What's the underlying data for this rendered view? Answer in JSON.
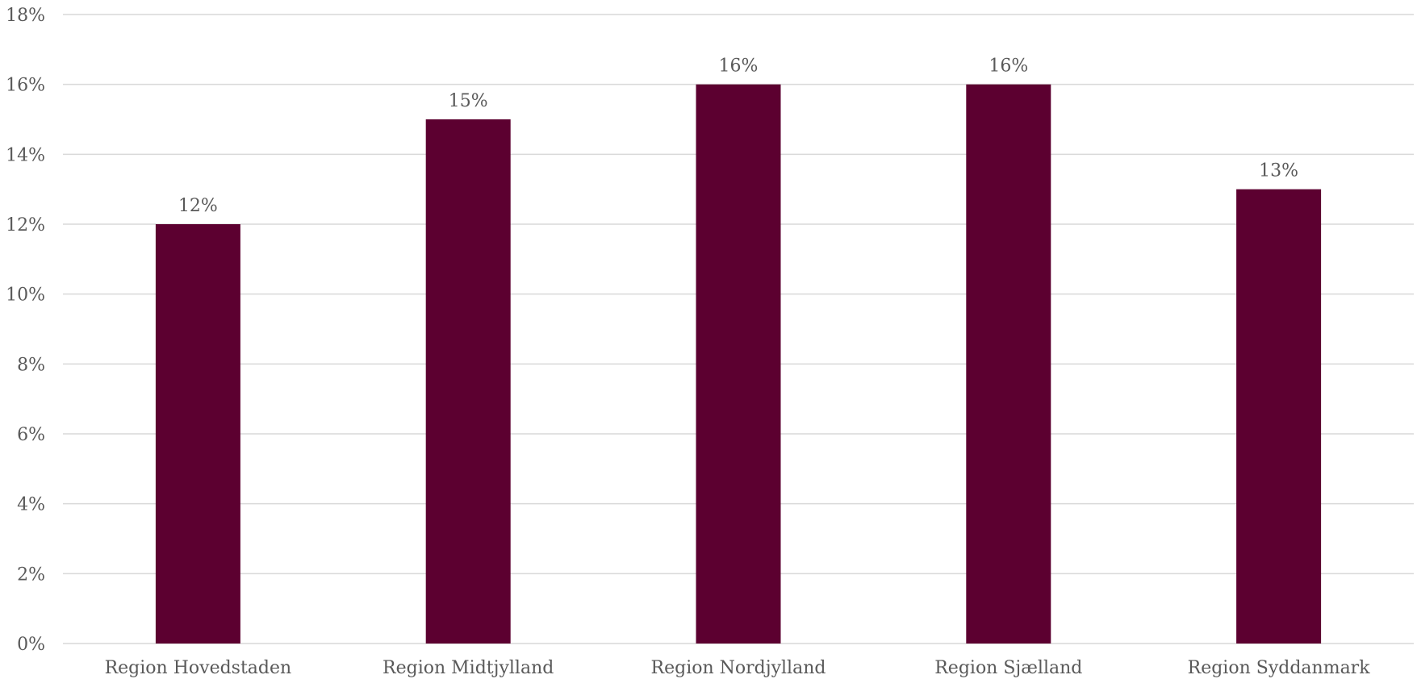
{
  "chart_data": {
    "type": "bar",
    "categories": [
      "Region Hovedstaden",
      "Region Midtjylland",
      "Region Nordjylland",
      "Region Sjælland",
      "Region Syddanmark"
    ],
    "values": [
      12,
      15,
      16,
      16,
      13
    ],
    "data_labels": [
      "12%",
      "15%",
      "16%",
      "16%",
      "13%"
    ],
    "ylim": [
      0,
      18
    ],
    "y_ticks": [
      0,
      2,
      4,
      6,
      8,
      10,
      12,
      14,
      16,
      18
    ],
    "y_tick_labels": [
      "0%",
      "2%",
      "4%",
      "6%",
      "8%",
      "10%",
      "12%",
      "14%",
      "16%",
      "18%"
    ],
    "grid": true,
    "legend": "none",
    "colors": {
      "bar": "#5c0030",
      "grid": "#d9d9d9",
      "text": "#595959"
    }
  }
}
